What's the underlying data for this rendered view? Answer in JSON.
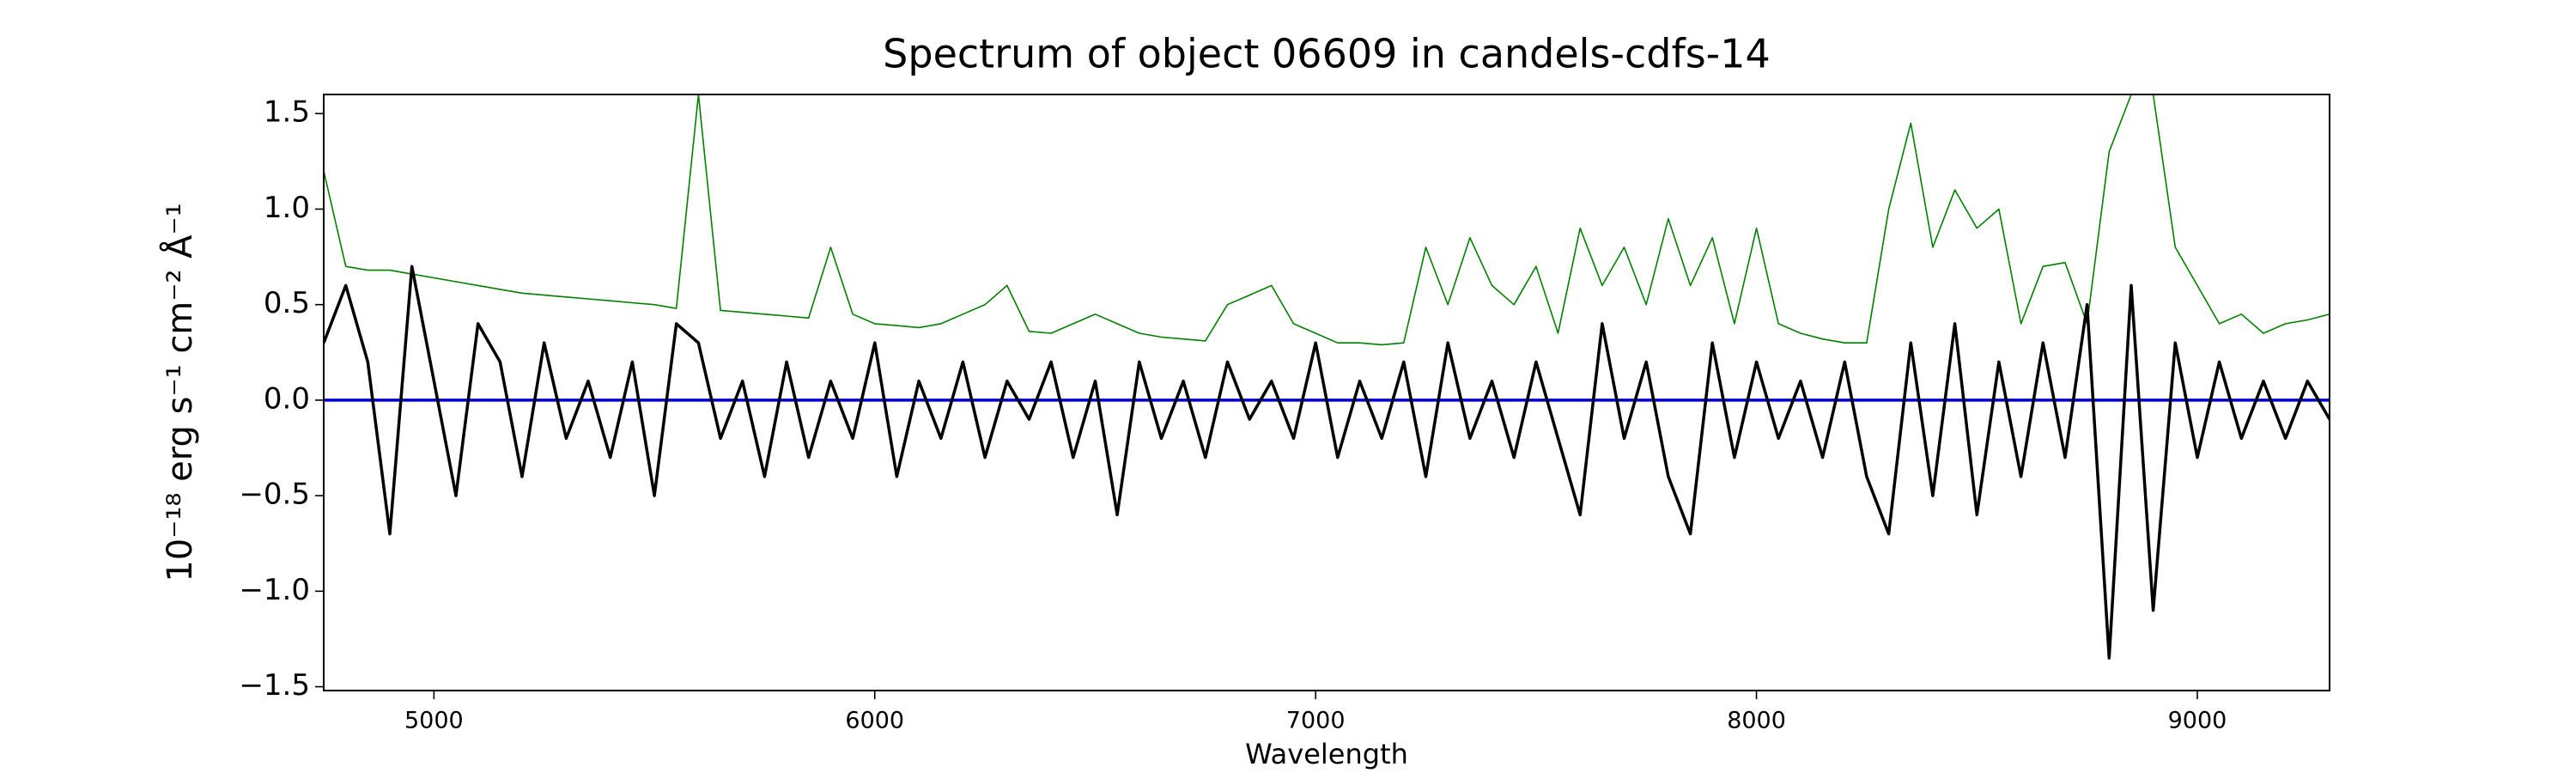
{
  "chart_data": {
    "type": "line",
    "title": "Spectrum of object 06609 in candels-cdfs-14",
    "xlabel": "Wavelength",
    "ylabel": "10⁻¹⁸ erg s⁻¹ cm⁻² Å⁻¹",
    "x": [
      4750,
      4800,
      4850,
      4900,
      4950,
      5000,
      5050,
      5100,
      5150,
      5200,
      5250,
      5300,
      5350,
      5400,
      5450,
      5500,
      5550,
      5600,
      5650,
      5700,
      5750,
      5800,
      5850,
      5900,
      5950,
      6000,
      6050,
      6100,
      6150,
      6200,
      6250,
      6300,
      6350,
      6400,
      6450,
      6500,
      6550,
      6600,
      6650,
      6700,
      6750,
      6800,
      6850,
      6900,
      6950,
      7000,
      7050,
      7100,
      7150,
      7200,
      7250,
      7300,
      7350,
      7400,
      7450,
      7500,
      7550,
      7600,
      7650,
      7700,
      7750,
      7800,
      7850,
      7900,
      7950,
      8000,
      8050,
      8100,
      8150,
      8200,
      8250,
      8300,
      8350,
      8400,
      8450,
      8500,
      8550,
      8600,
      8650,
      8700,
      8750,
      8800,
      8850,
      8900,
      8950,
      9000,
      9050,
      9100,
      9150,
      9200,
      9250,
      9300
    ],
    "series": [
      {
        "color": "#008000",
        "values": [
          1.2,
          0.7,
          0.68,
          0.68,
          0.66,
          0.64,
          0.62,
          0.6,
          0.58,
          0.56,
          0.55,
          0.54,
          0.53,
          0.52,
          0.51,
          0.5,
          0.48,
          1.6,
          0.47,
          0.46,
          0.45,
          0.44,
          0.43,
          0.8,
          0.45,
          0.4,
          0.39,
          0.38,
          0.4,
          0.45,
          0.5,
          0.6,
          0.36,
          0.35,
          0.4,
          0.45,
          0.4,
          0.35,
          0.33,
          0.32,
          0.31,
          0.5,
          0.55,
          0.6,
          0.4,
          0.35,
          0.3,
          0.3,
          0.29,
          0.3,
          0.8,
          0.5,
          0.85,
          0.6,
          0.5,
          0.7,
          0.35,
          0.9,
          0.6,
          0.8,
          0.5,
          0.95,
          0.6,
          0.85,
          0.4,
          0.9,
          0.4,
          0.35,
          0.32,
          0.3,
          0.3,
          1.0,
          1.45,
          0.8,
          1.1,
          0.9,
          1.0,
          0.4,
          0.7,
          0.72,
          0.4,
          1.3,
          1.6,
          1.6,
          0.8,
          0.6,
          0.4,
          0.45,
          0.35,
          0.4,
          0.42,
          0.45
        ]
      },
      {
        "color": "#0000cc",
        "values": [
          0,
          0,
          0,
          0,
          0,
          0,
          0,
          0,
          0,
          0,
          0,
          0,
          0,
          0,
          0,
          0,
          0,
          0,
          0,
          0,
          0,
          0,
          0,
          0,
          0,
          0,
          0,
          0,
          0,
          0,
          0,
          0,
          0,
          0,
          0,
          0,
          0,
          0,
          0,
          0,
          0,
          0,
          0,
          0,
          0,
          0,
          0,
          0,
          0,
          0,
          0,
          0,
          0,
          0,
          0,
          0,
          0,
          0,
          0,
          0,
          0,
          0,
          0,
          0,
          0,
          0,
          0,
          0,
          0,
          0,
          0,
          0,
          0,
          0,
          0,
          0,
          0,
          0,
          0,
          0,
          0,
          0,
          0,
          0,
          0,
          0,
          0,
          0,
          0,
          0,
          0,
          0
        ]
      },
      {
        "color": "#000000",
        "values": [
          0.3,
          0.6,
          0.2,
          -0.7,
          0.7,
          0.1,
          -0.5,
          0.4,
          0.2,
          -0.4,
          0.3,
          -0.2,
          0.1,
          -0.3,
          0.2,
          -0.5,
          0.4,
          0.3,
          -0.2,
          0.1,
          -0.4,
          0.2,
          -0.3,
          0.1,
          -0.2,
          0.3,
          -0.4,
          0.1,
          -0.2,
          0.2,
          -0.3,
          0.1,
          -0.1,
          0.2,
          -0.3,
          0.1,
          -0.6,
          0.2,
          -0.2,
          0.1,
          -0.3,
          0.2,
          -0.1,
          0.1,
          -0.2,
          0.3,
          -0.3,
          0.1,
          -0.2,
          0.2,
          -0.4,
          0.3,
          -0.2,
          0.1,
          -0.3,
          0.2,
          -0.2,
          -0.6,
          0.4,
          -0.2,
          0.2,
          -0.4,
          -0.7,
          0.3,
          -0.3,
          0.2,
          -0.2,
          0.1,
          -0.3,
          0.2,
          -0.4,
          -0.7,
          0.3,
          -0.5,
          0.4,
          -0.6,
          0.2,
          -0.4,
          0.3,
          -0.3,
          0.5,
          -1.35,
          0.6,
          -1.1,
          0.3,
          -0.3,
          0.2,
          -0.2,
          0.1,
          -0.2,
          0.1,
          -0.1
        ]
      }
    ],
    "xlim": [
      4750,
      9300
    ],
    "ylim": [
      -1.52,
      1.6
    ],
    "xticks": [
      5000,
      6000,
      7000,
      8000,
      9000
    ],
    "yticks": [
      {
        "value": -1.5,
        "label": "−1.5"
      },
      {
        "value": -1,
        "label": "−1.0"
      },
      {
        "value": -0.5,
        "label": "−0.5"
      },
      {
        "value": 0,
        "label": "0.0"
      },
      0.5,
      {
        "value": 1,
        "label": "1.0"
      },
      1.5
    ]
  }
}
